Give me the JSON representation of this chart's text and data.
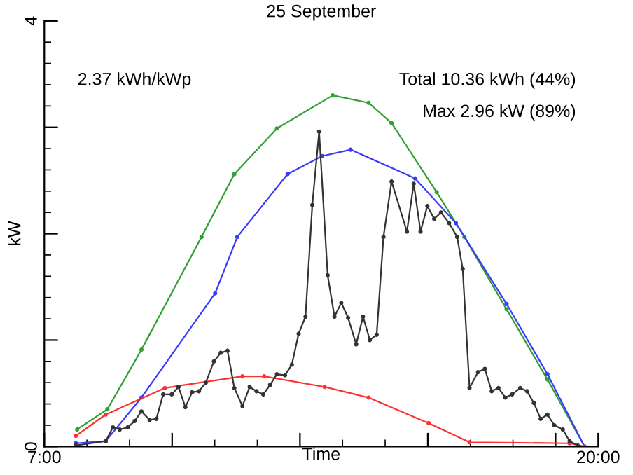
{
  "chart_data": {
    "type": "line",
    "title": "25 September",
    "xlabel": "Time",
    "ylabel": "kW",
    "annotations": [
      "2.37 kWh/kWp",
      "Total 10.36 kWh (44%)",
      "Max 2.96 kW (89%)"
    ],
    "xlim": [
      7,
      20
    ],
    "ylim": [
      0,
      4
    ],
    "xticks": [
      {
        "value": 7,
        "label": "7:00"
      },
      {
        "value": 10,
        "label": null
      },
      {
        "value": 13,
        "label": null
      },
      {
        "value": 16,
        "label": null
      },
      {
        "value": 19,
        "label": null
      },
      {
        "value": 20,
        "label": "20:00"
      }
    ],
    "yticks": [
      0,
      {
        "value": 1,
        "label": null
      },
      {
        "value": 2,
        "label": null
      },
      {
        "value": 3,
        "label": null
      },
      4
    ],
    "grid": false,
    "legend": false,
    "marker": "circle",
    "line_style": "solid",
    "series": [
      {
        "color": "#33a033",
        "x": [
          7.77,
          8.48,
          9.28,
          10.69,
          11.46,
          12.46,
          13.77,
          14.61,
          15.15,
          16.21,
          16.86,
          17.85,
          18.81,
          19.68
        ],
        "values": [
          0.16,
          0.35,
          0.91,
          1.97,
          2.56,
          2.99,
          3.3,
          3.23,
          3.04,
          2.39,
          1.97,
          1.29,
          0.63,
          0.0
        ]
      },
      {
        "color": "#3a3aff",
        "x": [
          7.74,
          8.44,
          9.28,
          11.01,
          11.53,
          12.71,
          13.52,
          14.19,
          15.7,
          16.66,
          17.85,
          18.81,
          19.68
        ],
        "values": [
          0.03,
          0.05,
          0.46,
          1.44,
          1.97,
          2.56,
          2.73,
          2.79,
          2.52,
          2.1,
          1.34,
          0.68,
          0.0
        ]
      },
      {
        "color": "#ff3030",
        "x": [
          7.74,
          8.44,
          9.83,
          11.65,
          12.16,
          13.58,
          14.61,
          16.02,
          16.98,
          19.33,
          19.68
        ],
        "values": [
          0.1,
          0.3,
          0.55,
          0.66,
          0.66,
          0.56,
          0.46,
          0.22,
          0.04,
          0.03,
          0.0
        ]
      },
      {
        "color": "#333333",
        "x": [
          7.74,
          8.44,
          8.61,
          8.77,
          8.96,
          9.12,
          9.28,
          9.47,
          9.63,
          9.79,
          9.99,
          10.15,
          10.31,
          10.47,
          10.63,
          10.79,
          10.98,
          11.14,
          11.3,
          11.46,
          11.65,
          11.82,
          11.98,
          12.14,
          12.3,
          12.46,
          12.65,
          12.81,
          12.97,
          13.13,
          13.29,
          13.45,
          13.65,
          13.81,
          13.97,
          14.13,
          14.32,
          14.48,
          14.64,
          14.8,
          14.96,
          15.15,
          15.51,
          15.67,
          15.83,
          15.99,
          16.15,
          16.31,
          16.5,
          16.69,
          16.82,
          16.98,
          17.18,
          17.34,
          17.5,
          17.66,
          17.82,
          17.98,
          18.17,
          18.33,
          18.49,
          18.65,
          18.81,
          18.97,
          19.17,
          19.33,
          19.52
        ],
        "values": [
          0.01,
          0.05,
          0.18,
          0.16,
          0.18,
          0.24,
          0.33,
          0.25,
          0.26,
          0.49,
          0.49,
          0.56,
          0.37,
          0.51,
          0.52,
          0.6,
          0.8,
          0.88,
          0.9,
          0.55,
          0.38,
          0.56,
          0.52,
          0.49,
          0.58,
          0.68,
          0.67,
          0.77,
          1.06,
          1.22,
          2.27,
          2.96,
          1.61,
          1.22,
          1.35,
          1.21,
          0.96,
          1.22,
          1.0,
          1.05,
          1.97,
          2.49,
          2.02,
          2.47,
          2.02,
          2.26,
          2.14,
          2.2,
          2.1,
          1.97,
          1.67,
          0.55,
          0.7,
          0.73,
          0.52,
          0.55,
          0.46,
          0.49,
          0.55,
          0.52,
          0.41,
          0.26,
          0.3,
          0.2,
          0.16,
          0.05,
          0.01
        ]
      }
    ]
  }
}
